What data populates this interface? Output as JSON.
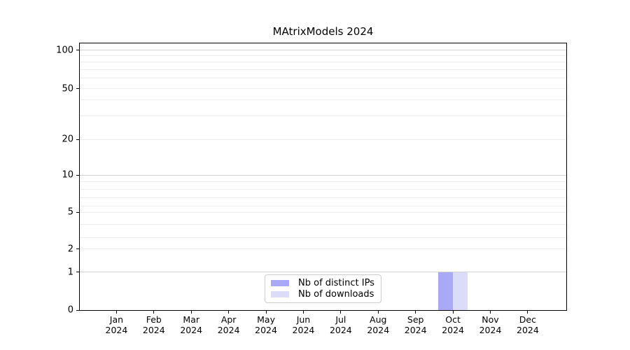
{
  "chart_data": {
    "type": "bar",
    "title": "MAtrixModels 2024",
    "xlabel": "",
    "ylabel": "",
    "categories": [
      "Jan",
      "Feb",
      "Mar",
      "Apr",
      "May",
      "Jun",
      "Jul",
      "Aug",
      "Sep",
      "Oct",
      "Nov",
      "Dec"
    ],
    "category_year": "2024",
    "series": [
      {
        "name": "Nb of distinct IPs",
        "color": "#a9a9f6",
        "values": [
          0,
          0,
          0,
          0,
          0,
          0,
          0,
          0,
          0,
          1,
          0,
          0
        ]
      },
      {
        "name": "Nb of downloads",
        "color": "#dcdcf9",
        "values": [
          0,
          0,
          0,
          0,
          0,
          0,
          0,
          0,
          0,
          1,
          0,
          0
        ]
      }
    ],
    "ylim": [
      0,
      114
    ],
    "grid": true,
    "y_axis": {
      "scale": "symlog",
      "major_ticks": [
        {
          "value": 0,
          "frac": 0.0
        },
        {
          "value": 1,
          "frac": 0.1425
        },
        {
          "value": 2,
          "frac": 0.2288
        },
        {
          "value": 5,
          "frac": 0.3673
        },
        {
          "value": 10,
          "frac": 0.5059
        },
        {
          "value": 20,
          "frac": 0.6392
        },
        {
          "value": 50,
          "frac": 0.8301
        },
        {
          "value": 100,
          "frac": 0.9739
        }
      ],
      "minor_gridlines": [
        {
          "value": 3,
          "frac": 0.2706
        },
        {
          "value": 4,
          "frac": 0.3203
        },
        {
          "value": 6,
          "frac": 0.3908
        },
        {
          "value": 7,
          "frac": 0.4222
        },
        {
          "value": 8,
          "frac": 0.4536
        },
        {
          "value": 9,
          "frac": 0.4824
        },
        {
          "value": 30,
          "frac": 0.7281
        },
        {
          "value": 40,
          "frac": 0.7882
        },
        {
          "value": 60,
          "frac": 0.8693
        },
        {
          "value": 70,
          "frac": 0.9007
        },
        {
          "value": 80,
          "frac": 0.9294
        },
        {
          "value": 90,
          "frac": 0.9529
        }
      ],
      "emphasis_values": [
        1,
        10,
        100
      ]
    },
    "legend": {
      "position": "lower center",
      "labels": [
        "Nb of distinct IPs",
        "Nb of downloads"
      ]
    }
  },
  "colors": {
    "background": "#ffffff",
    "axis": "#000000",
    "grid_minor": "#ececec",
    "grid_major": "#d2d2d2",
    "legend_border": "#cccccc"
  }
}
